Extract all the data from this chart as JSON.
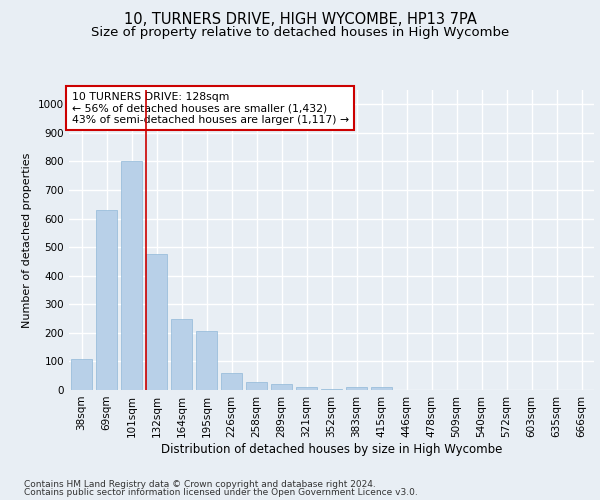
{
  "title1": "10, TURNERS DRIVE, HIGH WYCOMBE, HP13 7PA",
  "title2": "Size of property relative to detached houses in High Wycombe",
  "xlabel": "Distribution of detached houses by size in High Wycombe",
  "ylabel": "Number of detached properties",
  "footer1": "Contains HM Land Registry data © Crown copyright and database right 2024.",
  "footer2": "Contains public sector information licensed under the Open Government Licence v3.0.",
  "categories": [
    "38sqm",
    "69sqm",
    "101sqm",
    "132sqm",
    "164sqm",
    "195sqm",
    "226sqm",
    "258sqm",
    "289sqm",
    "321sqm",
    "352sqm",
    "383sqm",
    "415sqm",
    "446sqm",
    "478sqm",
    "509sqm",
    "540sqm",
    "572sqm",
    "603sqm",
    "635sqm",
    "666sqm"
  ],
  "values": [
    110,
    630,
    800,
    475,
    250,
    205,
    60,
    28,
    20,
    12,
    5,
    10,
    10,
    0,
    0,
    0,
    0,
    0,
    0,
    0,
    0
  ],
  "bar_color": "#b8d0e8",
  "bar_edge_color": "#90b8d8",
  "vline_color": "#cc0000",
  "annotation_text": "10 TURNERS DRIVE: 128sqm\n← 56% of detached houses are smaller (1,432)\n43% of semi-detached houses are larger (1,117) →",
  "annotation_box_color": "#ffffff",
  "annotation_box_edge_color": "#cc0000",
  "ylim": [
    0,
    1050
  ],
  "yticks": [
    0,
    100,
    200,
    300,
    400,
    500,
    600,
    700,
    800,
    900,
    1000
  ],
  "bg_color": "#e8eef4",
  "plot_bg_color": "#e8eef4",
  "grid_color": "#ffffff",
  "title1_fontsize": 10.5,
  "title2_fontsize": 9.5,
  "xlabel_fontsize": 8.5,
  "ylabel_fontsize": 8,
  "tick_fontsize": 7.5,
  "footer_fontsize": 6.5,
  "annot_fontsize": 7.8
}
